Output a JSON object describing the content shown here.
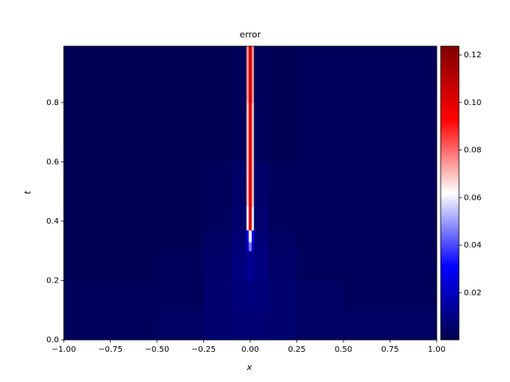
{
  "chart_data": {
    "type": "heatmap",
    "title": "error",
    "x_label": "x",
    "y_label": "t",
    "xbins": [
      -1,
      -0.5,
      -0.25,
      -0.1,
      -0.02,
      -0.008,
      0.008,
      0.02,
      0.1,
      0.25,
      0.5,
      1
    ],
    "ybins": [
      0,
      0.1,
      0.2,
      0.3,
      0.33,
      0.37,
      0.45,
      0.6,
      0.8,
      0.99
    ],
    "z": [
      [
        0.003,
        0.004,
        0.006,
        0.007,
        0.007,
        0.007,
        0.007,
        0.007,
        0.006,
        0.004,
        0.004
      ],
      [
        0.003,
        0.003,
        0.006,
        0.008,
        0.009,
        0.009,
        0.009,
        0.008,
        0.006,
        0.004,
        0.003
      ],
      [
        0.002,
        0.003,
        0.005,
        0.009,
        0.012,
        0.013,
        0.012,
        0.009,
        0.005,
        0.003,
        0.003
      ],
      [
        0.002,
        0.002,
        0.004,
        0.008,
        0.02,
        0.045,
        0.02,
        0.008,
        0.004,
        0.003,
        0.003
      ],
      [
        0.002,
        0.002,
        0.004,
        0.007,
        0.03,
        0.06,
        0.03,
        0.007,
        0.004,
        0.003,
        0.003
      ],
      [
        0.002,
        0.002,
        0.003,
        0.006,
        0.06,
        0.1,
        0.06,
        0.006,
        0.003,
        0.003,
        0.003
      ],
      [
        0.002,
        0.002,
        0.003,
        0.005,
        0.07,
        0.1,
        0.07,
        0.005,
        0.003,
        0.003,
        0.003
      ],
      [
        0.002,
        0.002,
        0.002,
        0.003,
        0.07,
        0.1,
        0.07,
        0.003,
        0.002,
        0.003,
        0.003
      ],
      [
        0.002,
        0.002,
        0.002,
        0.003,
        0.075,
        0.105,
        0.075,
        0.003,
        0.002,
        0.003,
        0.003
      ]
    ],
    "xlim": [
      -1,
      1
    ],
    "ylim": [
      0,
      0.99
    ],
    "xticks": [
      {
        "value": -1,
        "label": "−1.00"
      },
      {
        "value": -0.75,
        "label": "−0.75"
      },
      {
        "value": -0.5,
        "label": "−0.50"
      },
      {
        "value": -0.25,
        "label": "−0.25"
      },
      {
        "value": 0,
        "label": "0.00"
      },
      0.25,
      {
        "value": 0.5,
        "label": "0.50"
      },
      0.75,
      {
        "value": 1,
        "label": "1.00"
      }
    ],
    "yticks": [
      {
        "value": 0,
        "label": "0.0"
      },
      0.2,
      0.4,
      0.6,
      0.8
    ],
    "clim": [
      0.0002,
      0.1237
    ],
    "cticks": [
      0.02,
      0.04,
      0.06,
      0.08,
      {
        "value": 0.1,
        "label": "0.10"
      },
      0.12
    ],
    "colormap": [
      "#00004c",
      "#0000ff",
      "#ffffff",
      "#ff0000",
      "#7f0000"
    ]
  }
}
